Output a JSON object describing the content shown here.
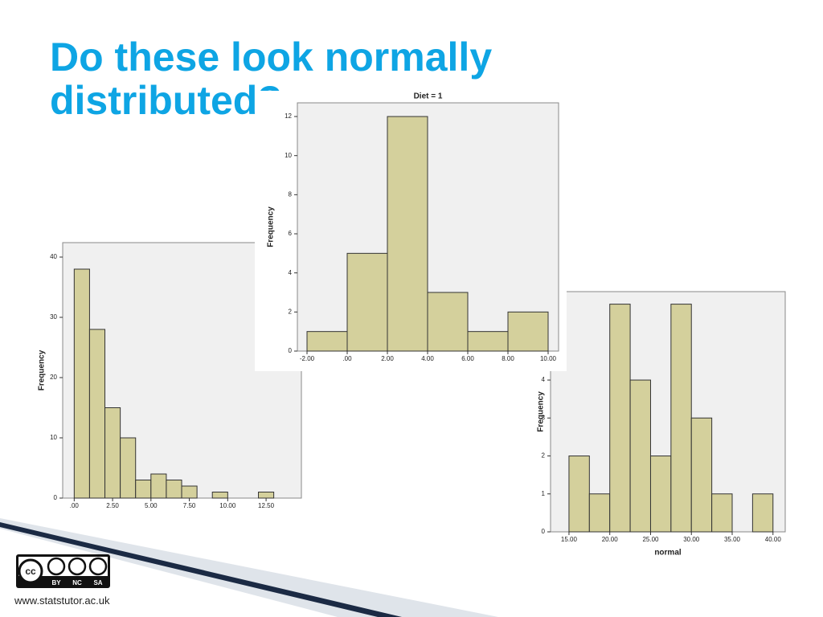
{
  "slide": {
    "title": "Do these look normally distributed?",
    "footer": "www.statstutor.ac.uk",
    "license": [
      "BY",
      "NC",
      "SA"
    ]
  },
  "chart_data": [
    {
      "type": "histogram",
      "ylabel": "Frequency",
      "color": "#d4d09c",
      "bins": [
        0,
        1,
        2,
        3,
        4,
        5,
        6,
        7,
        8,
        9,
        10,
        11,
        12,
        13
      ],
      "values": [
        38,
        28,
        15,
        10,
        3,
        4,
        3,
        2,
        0,
        1,
        0,
        0,
        1
      ],
      "xlim": [
        -0.75,
        14.8
      ],
      "ylim": [
        0,
        42.4
      ],
      "xticks": [
        {
          "value": 0,
          "label": ".00"
        },
        {
          "value": 2.5,
          "label": "2.50"
        },
        {
          "value": 5,
          "label": "5.00"
        },
        {
          "value": 7.5,
          "label": "7.50"
        },
        {
          "value": 10,
          "label": "10.00"
        },
        {
          "value": 12.5,
          "label": "12.50"
        }
      ],
      "yticks": [
        0,
        10,
        20,
        30,
        40
      ]
    },
    {
      "type": "histogram",
      "title": "Diet = 1",
      "ylabel": "Frequency",
      "color": "#d4d09c",
      "bins": [
        -2,
        0,
        2,
        4,
        6,
        8,
        10
      ],
      "values": [
        1,
        5,
        12,
        3,
        1,
        2
      ],
      "xlim": [
        -2.48,
        10.52
      ],
      "ylim": [
        0,
        12.7
      ],
      "xticks": [
        {
          "value": -2,
          "label": "-2.00"
        },
        {
          "value": 0,
          "label": ".00"
        },
        {
          "value": 2,
          "label": "2.00"
        },
        {
          "value": 4,
          "label": "4.00"
        },
        {
          "value": 6,
          "label": "6.00"
        },
        {
          "value": 8,
          "label": "8.00"
        },
        {
          "value": 10,
          "label": "10.00"
        }
      ],
      "yticks": [
        0,
        2,
        4,
        6,
        8,
        10,
        12
      ]
    },
    {
      "type": "histogram",
      "ylabel": "Frequency",
      "xlabel": "normal",
      "color": "#d4d09c",
      "bins": [
        15,
        17.5,
        20,
        22.5,
        25,
        27.5,
        30,
        32.5,
        35,
        37.5,
        40
      ],
      "values": [
        2,
        1,
        6,
        4,
        2,
        6,
        3,
        1,
        0,
        1
      ],
      "xlim": [
        12.74,
        41.5
      ],
      "ylim": [
        0,
        6.33
      ],
      "xticks": [
        {
          "value": 15,
          "label": "15.00"
        },
        {
          "value": 20,
          "label": "20.00"
        },
        {
          "value": 25,
          "label": "25.00"
        },
        {
          "value": 30,
          "label": "30.00"
        },
        {
          "value": 35,
          "label": "35.00"
        },
        {
          "value": 40,
          "label": "40.00"
        }
      ],
      "yticks": [
        0,
        1,
        2,
        3,
        4
      ]
    }
  ]
}
